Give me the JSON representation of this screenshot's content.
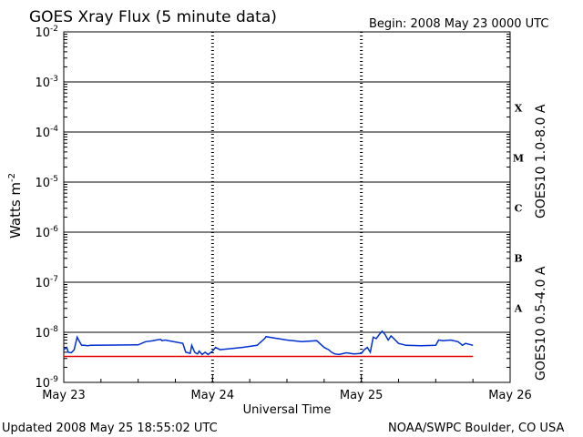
{
  "chart_data": {
    "type": "line",
    "title": "GOES Xray Flux (5 minute data)",
    "begin_label": "Begin:  2008 May 23 0000 UTC",
    "xlabel": "Universal Time",
    "ylabel": "Watts m",
    "ylabel_superscript": "-2",
    "x_ticks": [
      "May 23",
      "May 24",
      "May 25",
      "May 26"
    ],
    "xlim_days": [
      0,
      3
    ],
    "y_scale": "log",
    "ylim": [
      1e-09,
      0.01
    ],
    "y_ticks": [
      {
        "base": "10",
        "exp": "-2"
      },
      {
        "base": "10",
        "exp": "-3"
      },
      {
        "base": "10",
        "exp": "-4"
      },
      {
        "base": "10",
        "exp": "-5"
      },
      {
        "base": "10",
        "exp": "-6"
      },
      {
        "base": "10",
        "exp": "-7"
      },
      {
        "base": "10",
        "exp": "-8"
      },
      {
        "base": "10",
        "exp": "-9"
      }
    ],
    "flare_classes": [
      "X",
      "M",
      "C",
      "B",
      "A"
    ],
    "series": [
      {
        "name": "GOES10 1.0-8.0 A",
        "color": "#e00000",
        "x": [
          0.0,
          2.75
        ],
        "y": [
          3.3e-09,
          3.3e-09
        ]
      },
      {
        "name": "GOES10 0.5-4.0 A",
        "color": "#0030d0",
        "x": [
          0.0,
          0.02,
          0.03,
          0.05,
          0.07,
          0.09,
          0.1,
          0.12,
          0.14,
          0.16,
          0.18,
          0.5,
          0.55,
          0.6,
          0.62,
          0.65,
          0.66,
          0.68,
          0.8,
          0.82,
          0.85,
          0.86,
          0.88,
          0.89,
          0.9,
          0.91,
          0.93,
          0.95,
          0.97,
          1.0,
          1.02,
          1.05,
          1.2,
          1.3,
          1.35,
          1.36,
          1.4,
          1.5,
          1.6,
          1.7,
          1.75,
          1.78,
          1.8,
          1.82,
          1.85,
          1.9,
          1.95,
          2.0,
          2.02,
          2.04,
          2.06,
          2.08,
          2.1,
          2.12,
          2.14,
          2.16,
          2.18,
          2.2,
          2.25,
          2.3,
          2.4,
          2.5,
          2.52,
          2.55,
          2.6,
          2.65,
          2.68,
          2.7,
          2.75
        ],
        "y": [
          4.5e-09,
          5e-09,
          4e-09,
          3.9e-09,
          4.5e-09,
          8e-09,
          7e-09,
          5.5e-09,
          5.5e-09,
          5.4e-09,
          5.5e-09,
          5.6e-09,
          6.5e-09,
          6.8e-09,
          7e-09,
          7.2e-09,
          6.8e-09,
          7e-09,
          6e-09,
          4e-09,
          3.8e-09,
          5.5e-09,
          4e-09,
          3.8e-09,
          3.7e-09,
          4.2e-09,
          3.6e-09,
          4e-09,
          3.6e-09,
          4.2e-09,
          5e-09,
          4.5e-09,
          5e-09,
          5.5e-09,
          7.5e-09,
          8.2e-09,
          7.8e-09,
          7e-09,
          6.5e-09,
          6.8e-09,
          5e-09,
          4.5e-09,
          4e-09,
          3.7e-09,
          3.6e-09,
          3.9e-09,
          3.7e-09,
          3.8e-09,
          4.5e-09,
          5e-09,
          4e-09,
          8e-09,
          7.5e-09,
          9e-09,
          1.05e-08,
          9e-09,
          7e-09,
          8.5e-09,
          6e-09,
          5.5e-09,
          5.4e-09,
          5.5e-09,
          7e-09,
          6.8e-09,
          7e-09,
          6.5e-09,
          5.5e-09,
          6e-09,
          5.5e-09
        ]
      }
    ]
  },
  "footer": {
    "updated": "Updated 2008 May 25 18:55:02 UTC",
    "credit": "NOAA/SWPC Boulder, CO USA"
  },
  "colors": {
    "long_channel": "#e00000",
    "short_channel": "#0030d0",
    "grid": "#000000"
  }
}
